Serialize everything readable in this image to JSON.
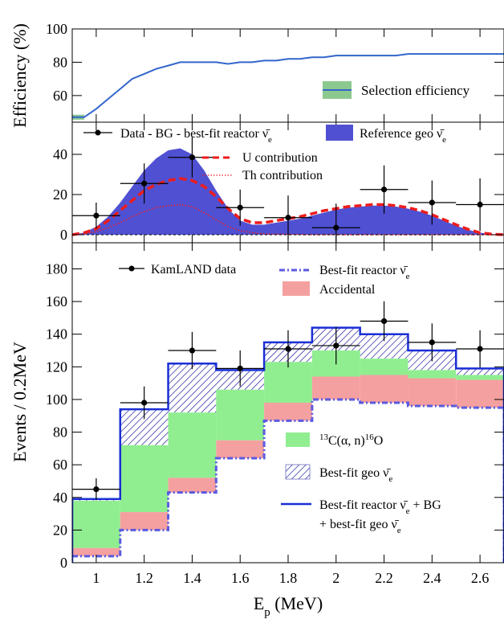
{
  "chart_data": {
    "type": "histogram",
    "shared_x": {
      "label_main": "E",
      "label_sub": "p",
      "label_unit": " (MeV)",
      "range": [
        0.9,
        2.7
      ],
      "ticks": [
        1,
        1.2,
        1.4,
        1.6,
        1.8,
        2,
        2.2,
        2.4,
        2.6
      ],
      "tick_labels": [
        "1",
        "1.2",
        "1.4",
        "1.6",
        "1.8",
        "2",
        "2.2",
        "2.4",
        "2.6"
      ]
    },
    "panels": [
      {
        "id": "efficiency",
        "type": "line",
        "ylabel": "Efficiency (%)",
        "ylim": [
          44,
          100
        ],
        "yticks": [
          60,
          80,
          100
        ],
        "ytick_labels": [
          "60",
          "80",
          "100"
        ],
        "series": [
          {
            "name": "Selection efficiency",
            "x": [
              0.9,
              0.95,
              1.0,
              1.05,
              1.1,
              1.15,
              1.2,
              1.25,
              1.3,
              1.35,
              1.4,
              1.45,
              1.5,
              1.55,
              1.6,
              1.65,
              1.7,
              1.75,
              1.8,
              1.85,
              1.9,
              1.95,
              2.0,
              2.05,
              2.1,
              2.15,
              2.2,
              2.25,
              2.3,
              2.35,
              2.4,
              2.45,
              2.5,
              2.55,
              2.6,
              2.65,
              2.7
            ],
            "y": [
              47,
              47,
              52,
              58,
              64,
              70,
              73,
              76,
              78,
              80,
              80,
              80,
              80,
              79,
              80,
              80,
              81,
              81,
              82,
              82,
              83,
              83,
              84,
              84,
              84,
              84,
              84,
              84,
              85,
              85,
              85,
              85,
              85,
              85,
              85,
              85,
              85
            ]
          }
        ],
        "colors": {
          "line": "#3366cc",
          "band": "#8cc98f"
        }
      },
      {
        "id": "geo",
        "type": "area",
        "ylim": [
          -4,
          56
        ],
        "yticks": [
          0,
          20,
          40
        ],
        "ytick_labels": [
          "0",
          "20",
          "40"
        ],
        "series": [
          {
            "name": "Reference geo ν̄e",
            "x": [
              0.9,
              0.95,
              1.0,
              1.05,
              1.1,
              1.15,
              1.2,
              1.25,
              1.3,
              1.35,
              1.4,
              1.45,
              1.5,
              1.55,
              1.6,
              1.65,
              1.7,
              1.75,
              1.8,
              1.85,
              1.9,
              1.95,
              2.0,
              2.05,
              2.1,
              2.15,
              2.2,
              2.25,
              2.3,
              2.35,
              2.4,
              2.45,
              2.5,
              2.55,
              2.6,
              2.65,
              2.7
            ],
            "y": [
              0,
              1,
              4,
              9,
              16,
              24,
              32,
              38,
              42,
              43,
              40,
              32,
              22,
              13,
              7,
              5,
              5,
              6,
              7,
              8,
              9.5,
              11,
              12.5,
              13.5,
              14,
              14.5,
              14.5,
              14,
              13,
              11.5,
              9.5,
              7,
              4.5,
              2.5,
              1,
              0.3,
              0
            ]
          },
          {
            "name": "U contribution",
            "x": [
              0.9,
              0.95,
              1.0,
              1.05,
              1.1,
              1.15,
              1.2,
              1.25,
              1.3,
              1.35,
              1.4,
              1.45,
              1.5,
              1.55,
              1.6,
              1.65,
              1.7,
              1.75,
              1.8,
              1.85,
              1.9,
              1.95,
              2.0,
              2.05,
              2.1,
              2.15,
              2.2,
              2.25,
              2.3,
              2.35,
              2.4,
              2.45,
              2.5,
              2.55,
              2.6,
              2.65,
              2.7
            ],
            "y": [
              0,
              1,
              3,
              7,
              12,
              17,
              22,
              25,
              27,
              28,
              27,
              24,
              19,
              13,
              8,
              6,
              6,
              7,
              8,
              9,
              10.5,
              12,
              13,
              14,
              14.5,
              15,
              15,
              14.5,
              13.5,
              12,
              10,
              7.5,
              5,
              2.7,
              1,
              0.3,
              0
            ]
          },
          {
            "name": "Th contribution",
            "x": [
              0.9,
              0.95,
              1.0,
              1.05,
              1.1,
              1.15,
              1.2,
              1.25,
              1.3,
              1.35,
              1.4,
              1.45,
              1.5,
              1.55,
              1.6,
              1.65,
              1.7,
              1.75,
              1.8,
              1.85,
              1.9,
              1.95,
              2.0,
              2.05,
              2.1,
              2.15,
              2.2,
              2.25,
              2.3,
              2.35,
              2.4,
              2.45,
              2.5,
              2.55,
              2.6,
              2.65,
              2.7
            ],
            "y": [
              0,
              0.5,
              1.5,
              3.5,
              6,
              9,
              11.5,
              13.5,
              14.5,
              15,
              14,
              11,
              7.5,
              4,
              2,
              1,
              0.5,
              0.3,
              0.2,
              0.1,
              0,
              0,
              0,
              0,
              0,
              0,
              0,
              0,
              0,
              0,
              0,
              0,
              0,
              0,
              0,
              0,
              0
            ]
          },
          {
            "name": "Data - BG - best-fit reactor ν̄e",
            "points": [
              {
                "x": 1.0,
                "y": 9.5,
                "err": 6.5
              },
              {
                "x": 1.2,
                "y": 25.5,
                "err": 10
              },
              {
                "x": 1.4,
                "y": 38.5,
                "err": 10
              },
              {
                "x": 1.6,
                "y": 13.5,
                "err": 9
              },
              {
                "x": 1.8,
                "y": 8.5,
                "err": 11
              },
              {
                "x": 2.0,
                "y": 3.5,
                "err": 12
              },
              {
                "x": 2.2,
                "y": 22.5,
                "err": 12
              },
              {
                "x": 2.4,
                "y": 16,
                "err": 11
              },
              {
                "x": 2.6,
                "y": 15,
                "err": 13
              }
            ]
          }
        ],
        "colors": {
          "geo": "#5050d2",
          "u": "#ee1c1c",
          "th": "#ee1c1c"
        },
        "legend": {
          "data_label": "Data - BG - best-fit reactor ν̄",
          "data_sub": "e",
          "geo_label": "Reference geo ν̄",
          "geo_sub": "e",
          "u_label": "U contribution",
          "th_label": "Th contribution"
        }
      },
      {
        "id": "events",
        "type": "histogram",
        "ylabel": "Events / 0.2MeV",
        "ylim": [
          0,
          196
        ],
        "yticks": [
          0,
          20,
          40,
          60,
          80,
          100,
          120,
          140,
          160,
          180
        ],
        "ytick_labels": [
          "0",
          "20",
          "40",
          "60",
          "80",
          "100",
          "120",
          "140",
          "160",
          "180"
        ],
        "bin_edges": [
          0.9,
          1.1,
          1.3,
          1.5,
          1.7,
          1.9,
          2.1,
          2.3,
          2.5,
          2.7
        ],
        "series": [
          {
            "name": "Best-fit reactor ν̄e",
            "values": [
              4,
              20,
              43,
              64,
              87,
              100,
              98,
              96,
              95
            ]
          },
          {
            "name": "Accidental",
            "values": [
              9,
              31,
              52,
              75,
              98,
              114,
              115,
              113,
              112
            ]
          },
          {
            "name": "13C(α, n)16O",
            "values": [
              38,
              72,
              92,
              106,
              123,
              130,
              125,
              118,
              115
            ]
          },
          {
            "name": "Best-fit geo ν̄e",
            "values": [
              39,
              94,
              122,
              118,
              135,
              144,
              140,
              130,
              119
            ]
          },
          {
            "name": "Best-fit reactor ν̄e + BG + best-fit geo ν̄e",
            "values": [
              39,
              94,
              122,
              118,
              135,
              144,
              140,
              130,
              119
            ]
          },
          {
            "name": "KamLAND data",
            "points": [
              {
                "x": 1.0,
                "y": 45,
                "err": 6.7
              },
              {
                "x": 1.2,
                "y": 98,
                "err": 10
              },
              {
                "x": 1.4,
                "y": 130,
                "err": 11.4
              },
              {
                "x": 1.6,
                "y": 119,
                "err": 11
              },
              {
                "x": 1.8,
                "y": 131,
                "err": 11.4
              },
              {
                "x": 2.0,
                "y": 133,
                "err": 11.5
              },
              {
                "x": 2.2,
                "y": 148,
                "err": 12.2
              },
              {
                "x": 2.4,
                "y": 135,
                "err": 11.6
              },
              {
                "x": 2.6,
                "y": 131,
                "err": 11.4
              }
            ]
          }
        ],
        "colors": {
          "reactor": "#5a5ae0",
          "accidental": "#f5a0a0",
          "carbon": "#90ee90",
          "geo_hatch": "#1c1c9c",
          "total": "#1a2fd6"
        },
        "legend": {
          "data_label": "KamLAND data",
          "reactor_label": "Best-fit reactor ν̄",
          "reactor_sub": "e",
          "acc_label": "Accidental",
          "carbon_pre_sup": "13",
          "carbon_mid": "C(α, n)",
          "carbon_post_sup": "16",
          "carbon_tail": "O",
          "geo_label": "Best-fit geo ν̄",
          "geo_sub": "e",
          "total_line1a": "Best-fit reactor ν̄",
          "total_line1_sub": "e",
          "total_line1b": " + BG",
          "total_line2a": "+ best-fit geo ν̄",
          "total_line2_sub": "e"
        }
      }
    ]
  }
}
